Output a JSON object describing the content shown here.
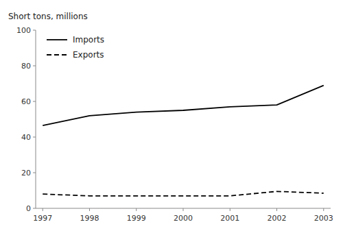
{
  "chart_data": {
    "type": "line",
    "ylabel": "Short tons, millions",
    "x": [
      1997,
      1998,
      1999,
      2000,
      2001,
      2002,
      2003
    ],
    "series": [
      {
        "name": "Imports",
        "color": "#000000",
        "line_style": "solid",
        "values": [
          46.5,
          52.0,
          54.0,
          55.0,
          57.0,
          58.0,
          69.0
        ]
      },
      {
        "name": "Exports",
        "color": "#000000",
        "line_style": "dashed",
        "values": [
          8.0,
          7.0,
          7.0,
          7.0,
          7.0,
          9.5,
          8.5
        ]
      }
    ],
    "xlim": [
      1996.85,
      2003.15
    ],
    "xticks": [
      1997,
      1998,
      1999,
      2000,
      2001,
      2002,
      2003
    ],
    "ylim": [
      0,
      100
    ],
    "yticks": [
      0,
      20,
      40,
      60,
      80,
      100
    ],
    "grid": false,
    "legend": "upper left"
  }
}
